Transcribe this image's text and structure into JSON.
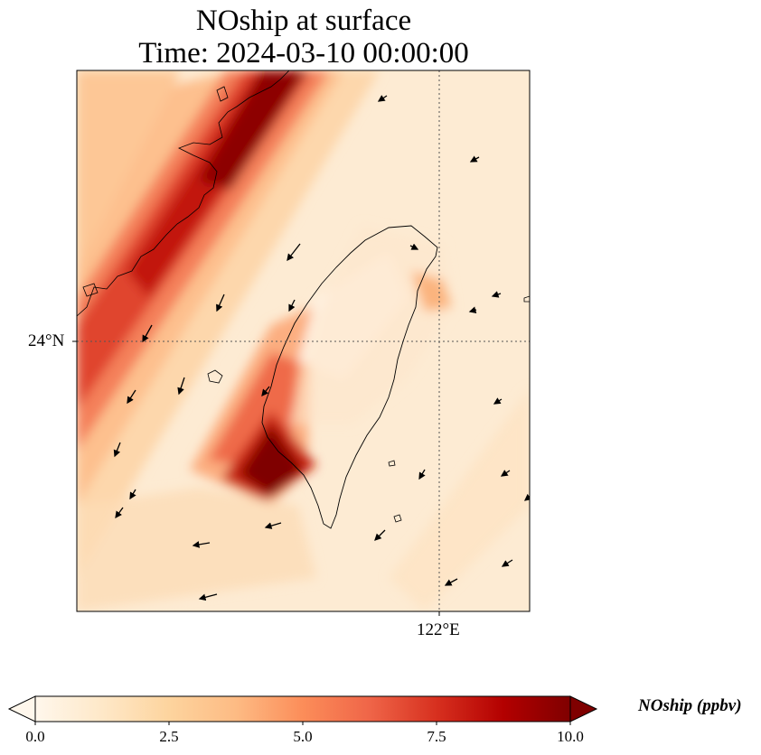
{
  "title": {
    "line1": "NOship at surface",
    "line2": "Time: 2024-03-10 00:00:00"
  },
  "map": {
    "lat_gridline_label": "24°N",
    "lon_gridline_label": "122°E",
    "background_color": "#fdebd3",
    "land_outline_color": "#000000"
  },
  "colorbar": {
    "label": "NOship (ppbv)",
    "ticks": [
      "0.0",
      "2.5",
      "5.0",
      "7.5",
      "10.0"
    ],
    "min": 0,
    "max": 10,
    "extend": "both",
    "colormap": "OrRd",
    "colors": [
      "#fff7ec",
      "#fee8c8",
      "#fdd49e",
      "#fdbb84",
      "#fc8d59",
      "#ef6548",
      "#d7301f",
      "#b30000",
      "#7f0000"
    ]
  }
}
